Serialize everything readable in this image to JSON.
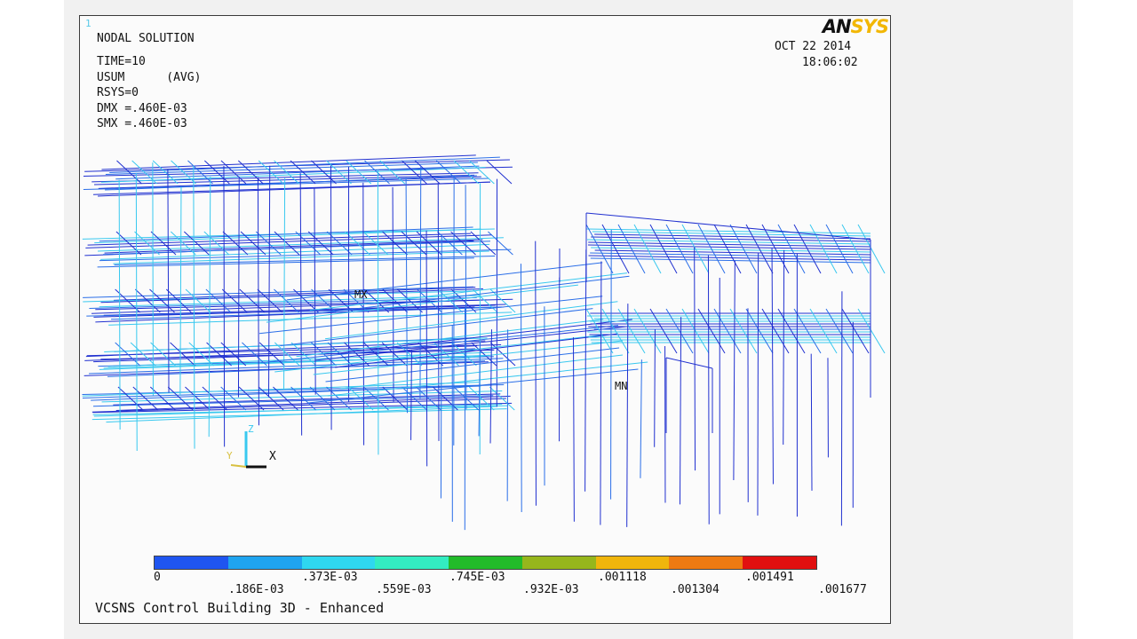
{
  "window_number": "1",
  "logo": {
    "an": "AN",
    "sys": "SYS"
  },
  "header": {
    "title": "NODAL SOLUTION",
    "lines": [
      "TIME=10",
      "USUM      (AVG)",
      "RSYS=0",
      "DMX =.460E-03",
      "SMX =.460E-03"
    ]
  },
  "datetime": {
    "date": "OCT 22 2014",
    "time": "18:06:02"
  },
  "markers": {
    "max": "MX",
    "min": "MN"
  },
  "triad": {
    "z": "Z",
    "y": "Y",
    "x": "X"
  },
  "legend": {
    "colors": [
      "#1f55f0",
      "#1fa4ef",
      "#2fd7ef",
      "#33ecc2",
      "#22bb2a",
      "#96b61c",
      "#f0b50c",
      "#ee7a12",
      "#e11010"
    ],
    "labels_top": [
      "0",
      ".373E-03",
      ".745E-03",
      ".001118",
      ".001491"
    ],
    "labels_bottom": [
      ".186E-03",
      ".559E-03",
      ".932E-03",
      ".001304",
      ".001677"
    ]
  },
  "footer": {
    "title": "VCSNS Control Building 3D - Enhanced"
  },
  "model_colors": {
    "dark": "#2030d0",
    "mid": "#2a6ee8",
    "light": "#38c8ef"
  }
}
